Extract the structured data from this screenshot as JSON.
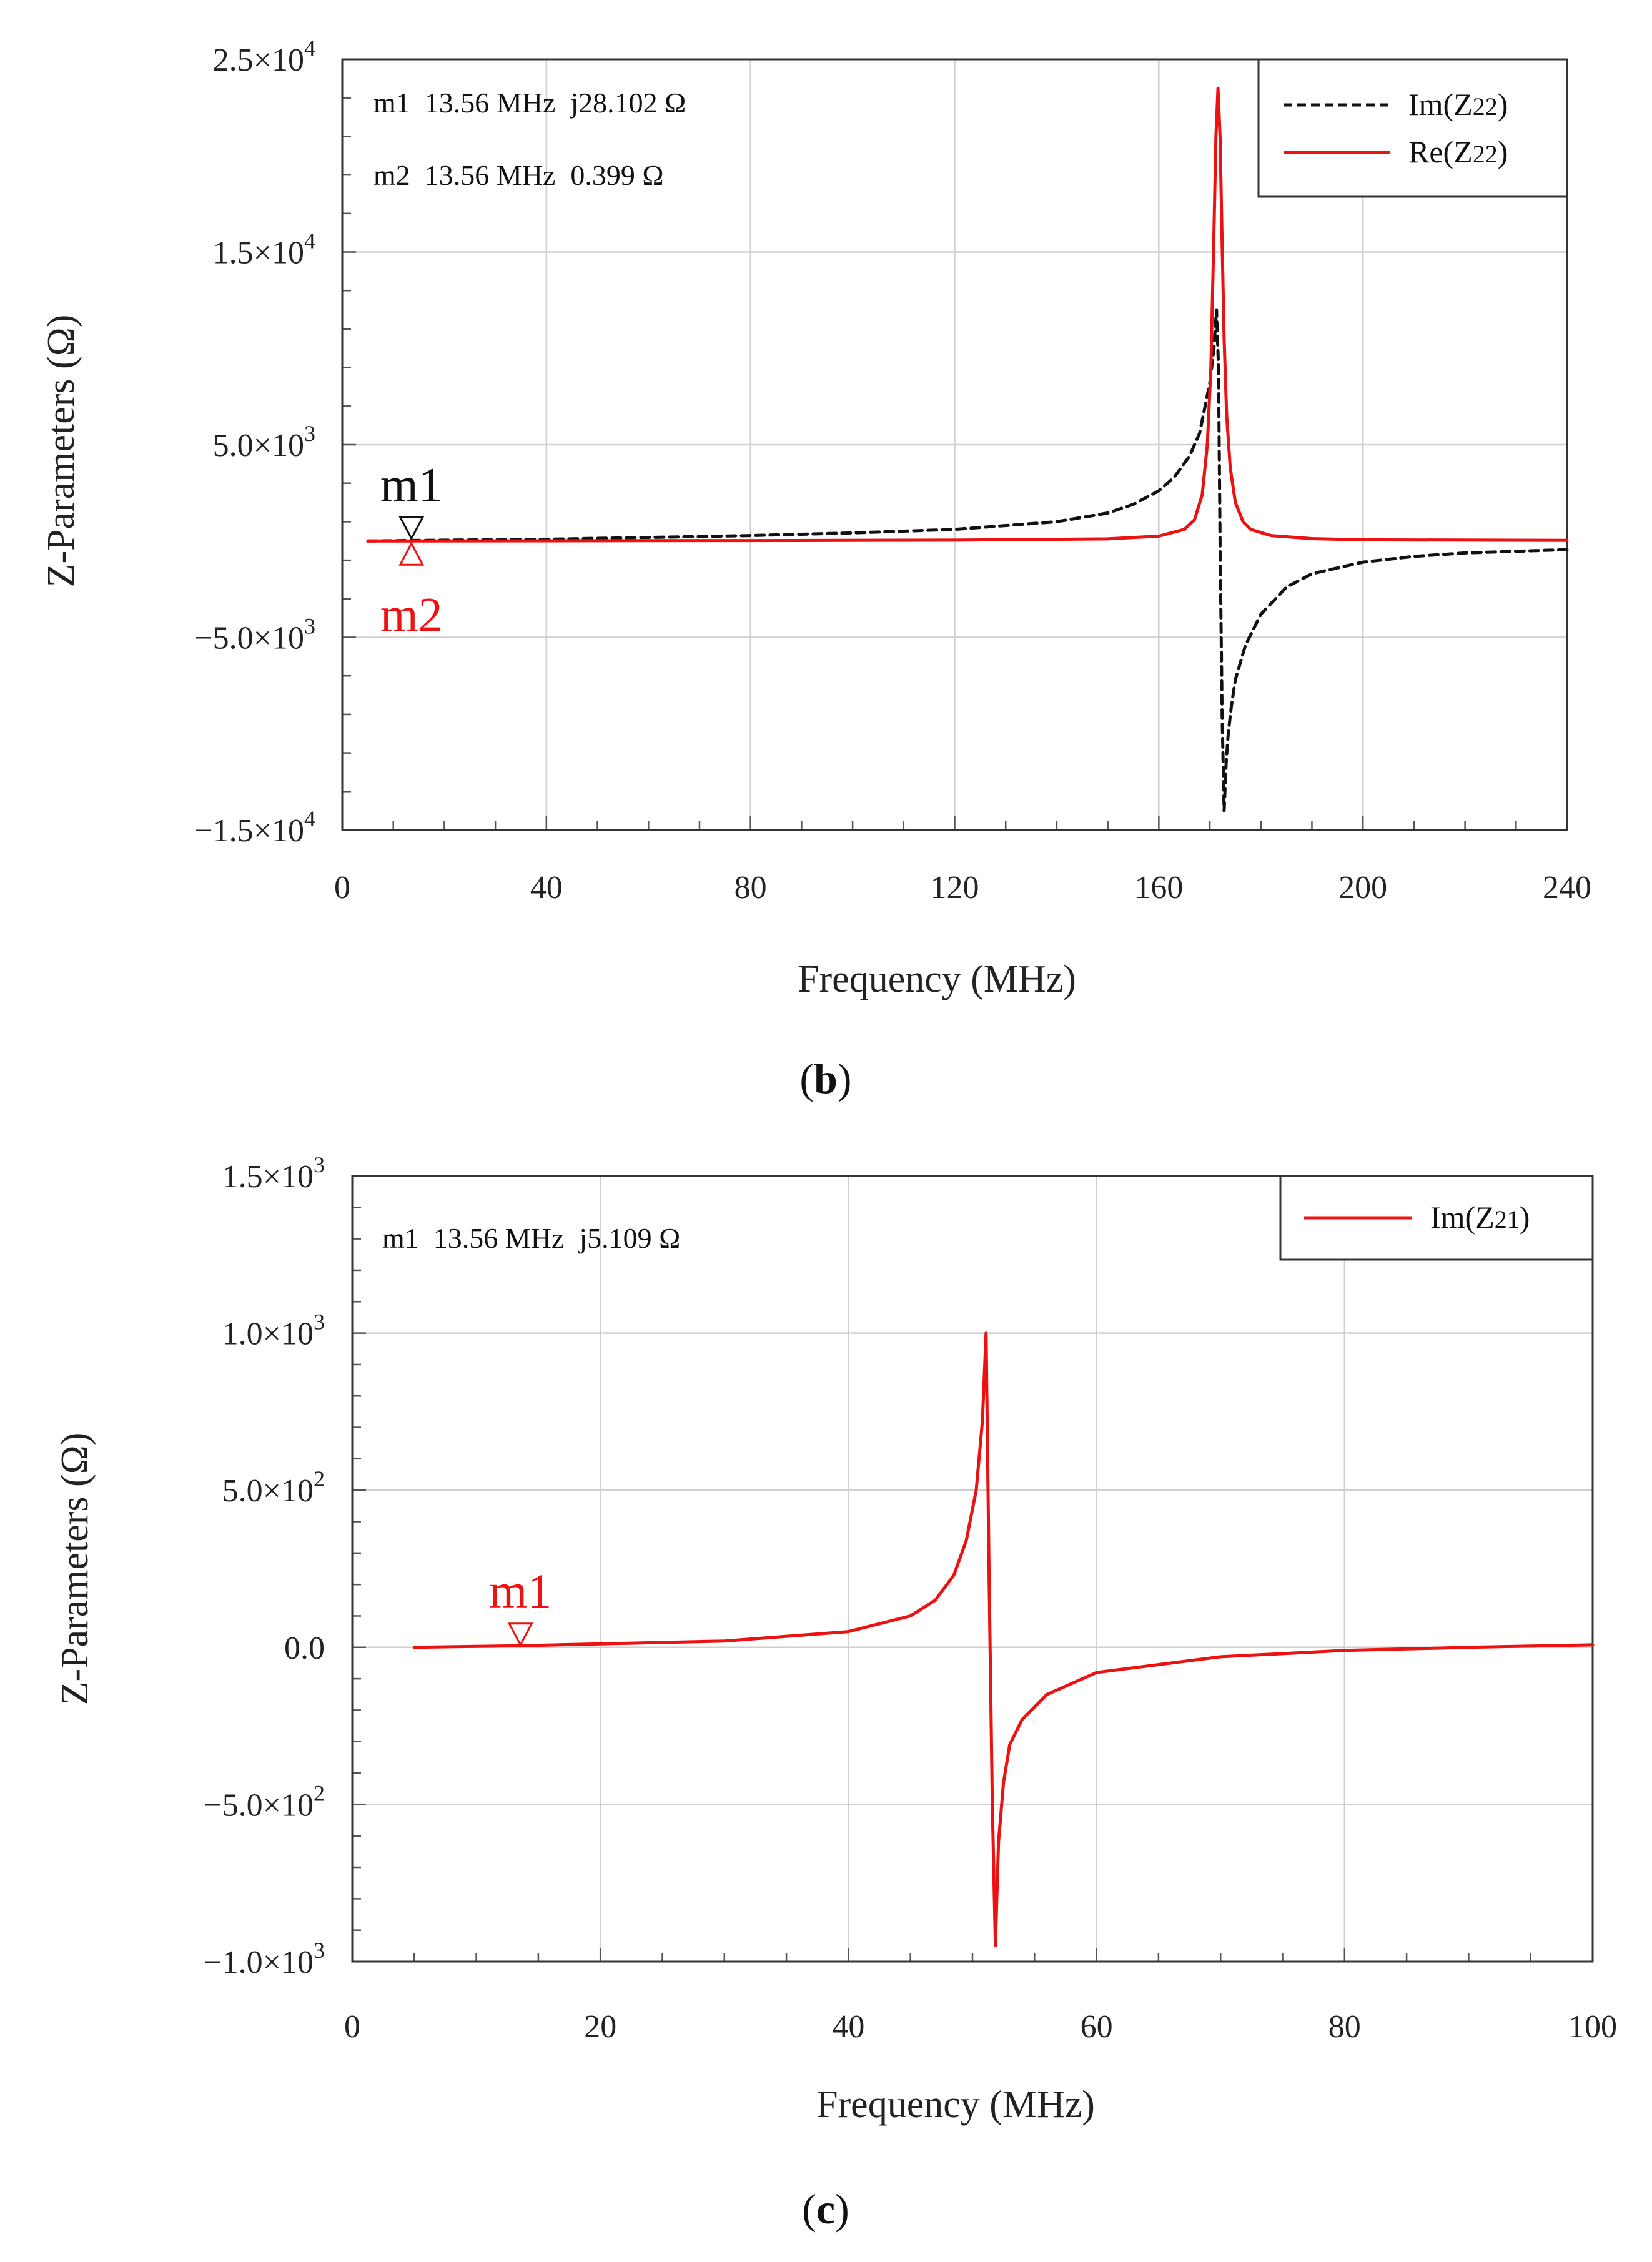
{
  "chart_data": [
    {
      "type": "line",
      "id": "b",
      "caption_open": "(",
      "caption_letter": "b",
      "caption_close": ")",
      "xlabel": "Frequency (MHz)",
      "ylabel": "Z-Parameters (Ω)",
      "xlim": [
        0,
        240
      ],
      "ylim": [
        -15000,
        25000
      ],
      "x_ticks": [
        0,
        40,
        80,
        120,
        160,
        200,
        240
      ],
      "x_tick_labels": [
        "0",
        "40",
        "80",
        "120",
        "160",
        "200",
        "240"
      ],
      "y_ticks": [
        25000,
        15000,
        5000,
        -5000,
        -15000
      ],
      "y_tick_labels": [
        {
          "mantissa": "2.5×10",
          "exp": "4"
        },
        {
          "mantissa": "1.5×10",
          "exp": "4"
        },
        {
          "mantissa": "5.0×10",
          "exp": "3"
        },
        {
          "mantissa": "−5.0×10",
          "exp": "3"
        },
        {
          "mantissa": "−1.5×10",
          "exp": "4"
        }
      ],
      "grid": true,
      "legend_position": "top-right",
      "series": [
        {
          "name": "Im(Z22)",
          "legend_base": "Im(Z",
          "legend_sub": "22",
          "legend_close": ")",
          "color": "#111111",
          "dash": true,
          "x": [
            5,
            13.56,
            40,
            80,
            100,
            120,
            140,
            150,
            155,
            160,
            163,
            166,
            168,
            170,
            170.8,
            171.3,
            171.7,
            172.0,
            172.4,
            172.8,
            173.2,
            173.6,
            174.2,
            175,
            177,
            180,
            185,
            190,
            200,
            210,
            220,
            240
          ],
          "y": [
            0,
            28.1,
            90,
            280,
            420,
            600,
            1000,
            1450,
            1900,
            2600,
            3300,
            4400,
            5600,
            8200,
            10000,
            12000,
            9000,
            0,
            -9000,
            -14000,
            -11500,
            -10000,
            -8600,
            -7200,
            -5400,
            -3800,
            -2400,
            -1700,
            -1100,
            -800,
            -620,
            -450
          ]
        },
        {
          "name": "Re(Z22)",
          "legend_base": "Re(Z",
          "legend_sub": "22",
          "legend_close": ")",
          "color": "#ee1111",
          "dash": false,
          "x": [
            5,
            13.56,
            80,
            120,
            150,
            160,
            165,
            167,
            168.5,
            169.5,
            170.2,
            170.8,
            171.2,
            171.6,
            172.0,
            172.4,
            172.8,
            173.3,
            174,
            175,
            176.5,
            178,
            182,
            190,
            200,
            240
          ],
          "y": [
            0,
            0.399,
            20,
            45,
            110,
            250,
            600,
            1100,
            2400,
            5000,
            9000,
            16000,
            21000,
            23500,
            21000,
            15500,
            10500,
            6500,
            3800,
            2000,
            1000,
            600,
            280,
            120,
            60,
            30
          ]
        }
      ],
      "markers": [
        {
          "name": "m1",
          "x": 13.56,
          "y": 0,
          "color": "#111111",
          "text_prefix": "m1  ",
          "text_freq": "13.56 MHz",
          "text_value": "j28.102 Ω",
          "label_above": true
        },
        {
          "name": "m2",
          "x": 13.56,
          "y": 0,
          "color": "#ee1111",
          "text_prefix": "m2  ",
          "text_freq": "13.56 MHz",
          "text_value": "0.399 Ω",
          "label_above": false
        }
      ]
    },
    {
      "type": "line",
      "id": "c",
      "caption_open": "(",
      "caption_letter": "c",
      "caption_close": ")",
      "xlabel": "Frequency (MHz)",
      "ylabel": "Z-Parameters (Ω)",
      "xlim": [
        0,
        100
      ],
      "ylim": [
        -1000,
        1500
      ],
      "x_ticks": [
        0,
        20,
        40,
        60,
        80,
        100
      ],
      "x_tick_labels": [
        "0",
        "20",
        "40",
        "60",
        "80",
        "100"
      ],
      "y_ticks": [
        1500,
        1000,
        500,
        0,
        -500,
        -1000
      ],
      "y_tick_labels": [
        {
          "mantissa": "1.5×10",
          "exp": "3"
        },
        {
          "mantissa": "1.0×10",
          "exp": "3"
        },
        {
          "mantissa": "5.0×10",
          "exp": "2"
        },
        {
          "mantissa": "0.0",
          "exp": ""
        },
        {
          "mantissa": "−5.0×10",
          "exp": "2"
        },
        {
          "mantissa": "−1.0×10",
          "exp": "3"
        }
      ],
      "grid": true,
      "legend_position": "top-right",
      "series": [
        {
          "name": "Im(Z21)",
          "legend_base": "Im(Z",
          "legend_sub": "21",
          "legend_close": ")",
          "color": "#ee1111",
          "dash": false,
          "x": [
            5,
            13.56,
            30,
            40,
            45,
            47,
            48.5,
            49.5,
            50.3,
            50.8,
            51.1,
            51.35,
            51.6,
            51.85,
            52.1,
            52.5,
            53,
            54,
            56,
            60,
            70,
            80,
            90,
            100
          ],
          "y": [
            0,
            5.1,
            20,
            50,
            100,
            150,
            230,
            340,
            500,
            720,
            1000,
            200,
            -500,
            -950,
            -620,
            -430,
            -310,
            -230,
            -150,
            -80,
            -30,
            -10,
            0,
            8
          ]
        }
      ],
      "markers": [
        {
          "name": "m1",
          "x": 13.56,
          "y": 0,
          "color": "#ee1111",
          "text_prefix": "m1  ",
          "text_freq": "13.56 MHz",
          "text_value": "j5.109 Ω",
          "label_above": true
        }
      ]
    }
  ]
}
